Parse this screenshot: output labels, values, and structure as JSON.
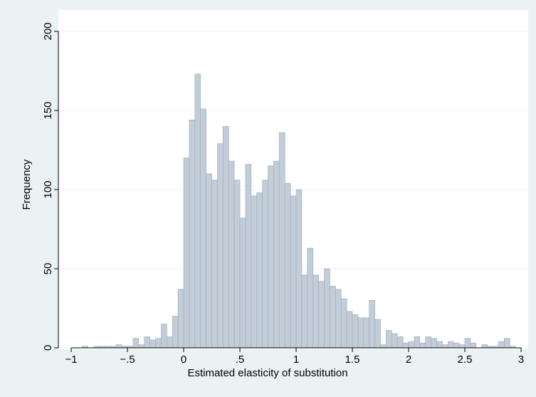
{
  "chart_data": {
    "type": "histogram",
    "x_label": "Estimated elasticity of substitution",
    "y_label": "Frequency",
    "bins": [
      -1,
      -0.95,
      -0.9,
      -0.85,
      -0.8,
      -0.75,
      -0.7,
      -0.65,
      -0.6,
      -0.55,
      -0.5,
      -0.45,
      -0.4,
      -0.35,
      -0.3,
      -0.25,
      -0.2,
      -0.15,
      -0.1,
      -0.05,
      0,
      0.05,
      0.1,
      0.15,
      0.2,
      0.25,
      0.3,
      0.35,
      0.4,
      0.45,
      0.5,
      0.55,
      0.6,
      0.65,
      0.7,
      0.75,
      0.8,
      0.85,
      0.9,
      0.95,
      1,
      1.05,
      1.1,
      1.15,
      1.2,
      1.25,
      1.3,
      1.35,
      1.4,
      1.45,
      1.5,
      1.55,
      1.6,
      1.65,
      1.7,
      1.75,
      1.8,
      1.85,
      1.9,
      1.95,
      2,
      2.05,
      2.1,
      2.15,
      2.2,
      2.25,
      2.3,
      2.35,
      2.4,
      2.45,
      2.5,
      2.55,
      2.6,
      2.65,
      2.7,
      2.75,
      2.8,
      2.85,
      2.9,
      2.95,
      3
    ],
    "values": [
      0,
      0,
      1,
      0,
      1,
      1,
      1,
      1,
      2,
      1,
      1,
      6,
      2,
      7,
      5,
      6,
      15,
      7,
      20,
      37,
      120,
      144,
      173,
      151,
      110,
      106,
      129,
      140,
      118,
      106,
      82,
      116,
      96,
      98,
      106,
      115,
      118,
      136,
      104,
      96,
      100,
      46,
      63,
      46,
      42,
      50,
      39,
      37,
      31,
      23,
      21,
      19,
      19,
      30,
      18,
      2,
      11,
      9,
      7,
      3,
      4,
      7,
      3,
      7,
      6,
      4,
      2,
      4,
      3,
      2,
      6,
      3,
      0,
      2,
      1,
      1,
      4,
      6,
      1,
      0
    ],
    "color": "#c3cdd8",
    "edge_color": "#9aa9ba",
    "xlim": [
      -1.114,
      3.063
    ],
    "ylim": [
      0,
      206.3
    ],
    "xticks": [
      {
        "value": -1,
        "label": "−1"
      },
      {
        "value": -0.5,
        "label": "−.5"
      },
      0,
      {
        "value": 0.5,
        "label": ".5"
      },
      1,
      1.5,
      2,
      2.5,
      3
    ],
    "yticks": [
      0,
      50,
      100,
      150,
      200
    ],
    "grid": true
  }
}
